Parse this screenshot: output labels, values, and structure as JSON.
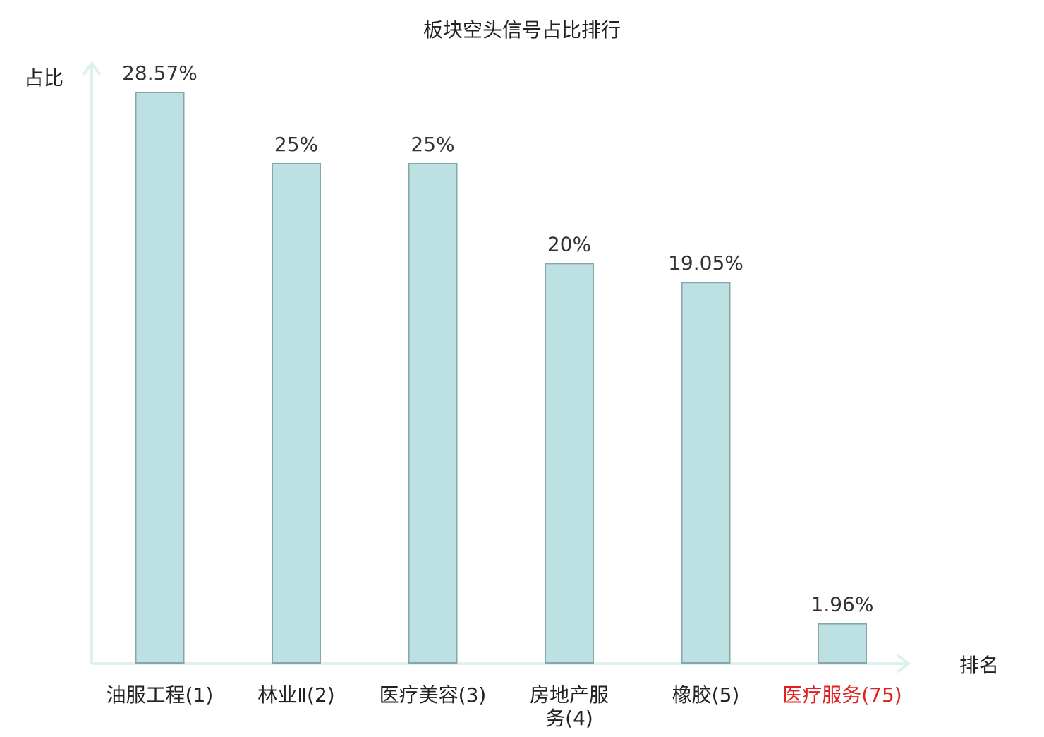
{
  "chart_data": {
    "type": "bar",
    "title": "板块空头信号占比排行",
    "ylabel": "占比",
    "xlabel": "排名",
    "ylim": [
      0,
      30
    ],
    "categories": [
      {
        "name": "油服工程",
        "rank": "(1)",
        "lines": [
          "油服工程(1)"
        ]
      },
      {
        "name": "林业Ⅱ",
        "rank": "(2)",
        "lines": [
          "林业Ⅱ(2)"
        ]
      },
      {
        "name": "医疗美容",
        "rank": "(3)",
        "lines": [
          "医疗美容(3)"
        ]
      },
      {
        "name": "房地产服务",
        "rank": "(4)",
        "lines": [
          "房地产服",
          "务(4)"
        ]
      },
      {
        "name": "橡胶",
        "rank": "(5)",
        "lines": [
          "橡胶(5)"
        ]
      },
      {
        "name": "医疗服务",
        "rank": "(75)",
        "lines": [
          "医疗服务(75)"
        ]
      }
    ],
    "values": [
      28.57,
      25,
      25,
      20,
      19.05,
      1.96
    ],
    "value_labels": [
      "28.57%",
      "25%",
      "25%",
      "20%",
      "19.05%",
      "1.96%"
    ],
    "highlight_index": 5,
    "grid": false,
    "colors": {
      "bar_fill": "#bde0e2",
      "bar_stroke": "#86a6a8",
      "axis": "#dff1ef",
      "label": "#222222",
      "highlight_label": "#e02020"
    }
  }
}
